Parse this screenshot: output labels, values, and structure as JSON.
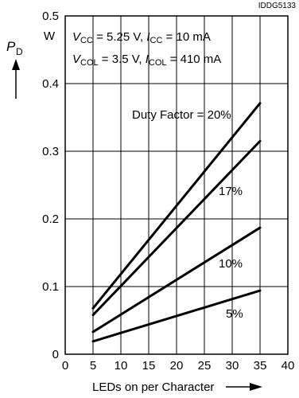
{
  "figure_id": "IDDG5133",
  "chart_data": {
    "type": "line",
    "x": [
      5,
      35
    ],
    "series": [
      {
        "name": "Duty Factor = 20%",
        "values": [
          0.068,
          0.371
        ]
      },
      {
        "name": "17%",
        "values": [
          0.058,
          0.315
        ]
      },
      {
        "name": "10%",
        "values": [
          0.033,
          0.187
        ]
      },
      {
        "name": "5%",
        "values": [
          0.019,
          0.094
        ]
      }
    ],
    "xlim": [
      0,
      40
    ],
    "ylim": [
      0,
      0.5
    ],
    "xticks": [
      "0",
      "5",
      "10",
      "15",
      "20",
      "25",
      "30",
      "35",
      "40"
    ],
    "yticks": [
      "0",
      "0.1",
      "0.2",
      "0.3",
      "0.4",
      "0.5"
    ],
    "xlabel": "LEDs on per Character",
    "ylabel": {
      "symbol": "P",
      "subscript": "D",
      "unit": "W"
    },
    "conditions": [
      {
        "v_sym": "V",
        "v_sub": "CC",
        "v_val": " = 5.25 V, ",
        "i_sym": "I",
        "i_sub": "CC",
        "i_val": " = 10 mA"
      },
      {
        "v_sym": "V",
        "v_sub": "COL",
        "v_val": " = 3.5 V, ",
        "i_sym": "I",
        "i_sub": "COL",
        "i_val": " = 410 mA"
      }
    ],
    "grid": true
  }
}
